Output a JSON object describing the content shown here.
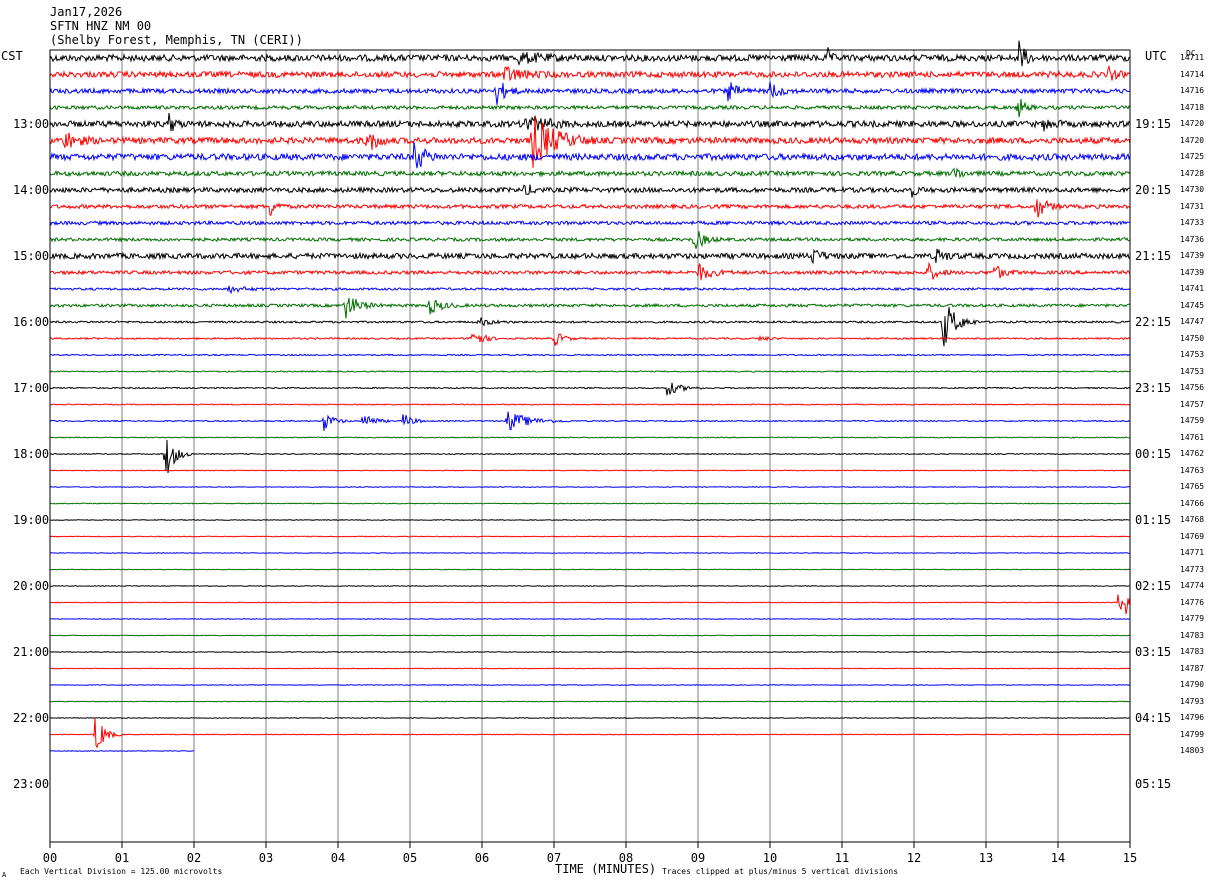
{
  "header": {
    "date": "Jan17,2026",
    "station": "SFTN HNZ NM 00",
    "location": "(Shelby Forest, Memphis, TN (CERI))"
  },
  "left_label": "CST",
  "right_label": "UTC",
  "dc_label": "DC",
  "footer": {
    "scale_note": "Each Vertical Division =  125.00 microvolts",
    "clip_note": "Traces clipped at plus/minus 5 vertical divisions",
    "corner_mark": "A"
  },
  "colors": {
    "trace_cycle": [
      "#000000",
      "#ff0000",
      "#0000ff",
      "#007000"
    ],
    "grid": "#808080",
    "frame": "#000000"
  },
  "chart_data": {
    "type": "seismogram",
    "title": "SFTN HNZ NM 00",
    "xlabel": "TIME (MINUTES)",
    "xlim": [
      0,
      15
    ],
    "x_ticks": [
      "00",
      "01",
      "02",
      "03",
      "04",
      "05",
      "06",
      "07",
      "08",
      "09",
      "10",
      "11",
      "12",
      "13",
      "14",
      "15"
    ],
    "rows_per_hour": 4,
    "cst_hour_labels": [
      "13:00",
      "14:00",
      "15:00",
      "16:00",
      "17:00",
      "18:00",
      "19:00",
      "20:00",
      "21:00",
      "22:00",
      "23:00"
    ],
    "utc_hour_labels": [
      "19:15",
      "20:15",
      "21:15",
      "22:15",
      "23:15",
      "00:15",
      "01:15",
      "02:15",
      "03:15",
      "04:15",
      "05:15"
    ],
    "dc_offsets": [
      "14711",
      "14714",
      "14716",
      "14718",
      "14720",
      "14720",
      "14725",
      "14728",
      "14730",
      "14731",
      "14733",
      "14736",
      "14739",
      "14739",
      "14741",
      "14745",
      "14747",
      "14750",
      "14753",
      "14753",
      "14756",
      "14757",
      "14759",
      "14761",
      "14762",
      "14763",
      "14765",
      "14766",
      "14768",
      "14769",
      "14771",
      "14773",
      "14774",
      "14776",
      "14779",
      "14783",
      "14783",
      "14787",
      "14790",
      "14793",
      "14796",
      "14799",
      "14803"
    ],
    "noise_levels": [
      1.0,
      0.9,
      0.7,
      0.55,
      0.95,
      0.95,
      1.0,
      0.7,
      0.75,
      0.6,
      0.55,
      0.5,
      0.85,
      0.55,
      0.35,
      0.45,
      0.3,
      0.25,
      0.2,
      0.18,
      0.2,
      0.15,
      0.18,
      0.15,
      0.15,
      0.12,
      0.12,
      0.12,
      0.12,
      0.12,
      0.1,
      0.1,
      0.1,
      0.1,
      0.1,
      0.1,
      0.1,
      0.1,
      0.1,
      0.1,
      0.1,
      0.1,
      0.1
    ],
    "last_trace_end_minute": 2.0,
    "events": [
      {
        "row": 0,
        "minute": 6.5,
        "amplitude": 0.5,
        "duration": 0.4
      },
      {
        "row": 0,
        "minute": 10.8,
        "amplitude": 1.0,
        "duration": 0.05
      },
      {
        "row": 0,
        "minute": 13.45,
        "amplitude": 2.0,
        "duration": 0.1
      },
      {
        "row": 1,
        "minute": 6.3,
        "amplitude": 0.8,
        "duration": 0.3
      },
      {
        "row": 1,
        "minute": 14.7,
        "amplitude": 0.8,
        "duration": 0.1
      },
      {
        "row": 2,
        "minute": 6.2,
        "amplitude": 1.5,
        "duration": 0.15
      },
      {
        "row": 2,
        "minute": 9.4,
        "amplitude": 1.2,
        "duration": 0.15
      },
      {
        "row": 2,
        "minute": 10.0,
        "amplitude": 1.0,
        "duration": 0.15
      },
      {
        "row": 3,
        "minute": 13.45,
        "amplitude": 1.2,
        "duration": 0.1
      },
      {
        "row": 4,
        "minute": 1.65,
        "amplitude": 1.0,
        "duration": 0.1
      },
      {
        "row": 4,
        "minute": 6.6,
        "amplitude": 1.2,
        "duration": 0.3
      },
      {
        "row": 4,
        "minute": 13.8,
        "amplitude": 0.6,
        "duration": 0.15
      },
      {
        "row": 5,
        "minute": 0.2,
        "amplitude": 1.0,
        "duration": 0.2
      },
      {
        "row": 5,
        "minute": 4.4,
        "amplitude": 1.5,
        "duration": 0.15
      },
      {
        "row": 5,
        "minute": 6.7,
        "amplitude": 3.0,
        "duration": 0.35
      },
      {
        "row": 6,
        "minute": 5.05,
        "amplitude": 2.0,
        "duration": 0.15
      },
      {
        "row": 7,
        "minute": 12.55,
        "amplitude": 1.0,
        "duration": 0.1
      },
      {
        "row": 8,
        "minute": 6.6,
        "amplitude": 0.8,
        "duration": 0.1
      },
      {
        "row": 8,
        "minute": 11.95,
        "amplitude": 0.8,
        "duration": 0.1
      },
      {
        "row": 9,
        "minute": 3.05,
        "amplitude": 1.2,
        "duration": 0.1
      },
      {
        "row": 9,
        "minute": 13.7,
        "amplitude": 1.4,
        "duration": 0.15
      },
      {
        "row": 11,
        "minute": 8.95,
        "amplitude": 1.3,
        "duration": 0.15
      },
      {
        "row": 12,
        "minute": 10.55,
        "amplitude": 1.0,
        "duration": 0.15
      },
      {
        "row": 12,
        "minute": 12.3,
        "amplitude": 0.8,
        "duration": 0.15
      },
      {
        "row": 13,
        "minute": 9.0,
        "amplitude": 1.0,
        "duration": 0.2
      },
      {
        "row": 13,
        "minute": 12.2,
        "amplitude": 1.0,
        "duration": 0.15
      },
      {
        "row": 13,
        "minute": 13.1,
        "amplitude": 1.0,
        "duration": 0.15
      },
      {
        "row": 14,
        "minute": 2.45,
        "amplitude": 0.4,
        "duration": 0.3
      },
      {
        "row": 15,
        "minute": 4.1,
        "amplitude": 1.5,
        "duration": 0.2
      },
      {
        "row": 15,
        "minute": 5.25,
        "amplitude": 1.0,
        "duration": 0.2
      },
      {
        "row": 16,
        "minute": 5.95,
        "amplitude": 0.5,
        "duration": 0.2
      },
      {
        "row": 16,
        "minute": 12.4,
        "amplitude": 3.0,
        "duration": 0.2
      },
      {
        "row": 17,
        "minute": 5.85,
        "amplitude": 1.5,
        "duration": 0.15
      },
      {
        "row": 17,
        "minute": 7.0,
        "amplitude": 0.9,
        "duration": 0.15
      },
      {
        "row": 17,
        "minute": 9.85,
        "amplitude": 0.3,
        "duration": 0.15
      },
      {
        "row": 20,
        "minute": 8.55,
        "amplitude": 1.0,
        "duration": 0.2
      },
      {
        "row": 22,
        "minute": 3.8,
        "amplitude": 1.2,
        "duration": 0.15
      },
      {
        "row": 22,
        "minute": 4.35,
        "amplitude": 1.2,
        "duration": 0.15
      },
      {
        "row": 22,
        "minute": 4.9,
        "amplitude": 0.9,
        "duration": 0.15
      },
      {
        "row": 22,
        "minute": 6.35,
        "amplitude": 1.2,
        "duration": 0.35
      },
      {
        "row": 24,
        "minute": 1.6,
        "amplitude": 3.0,
        "duration": 0.15
      },
      {
        "row": 33,
        "minute": 14.85,
        "amplitude": 3.0,
        "duration": 0.15
      },
      {
        "row": 41,
        "minute": 0.62,
        "amplitude": 2.5,
        "duration": 0.15
      }
    ]
  }
}
